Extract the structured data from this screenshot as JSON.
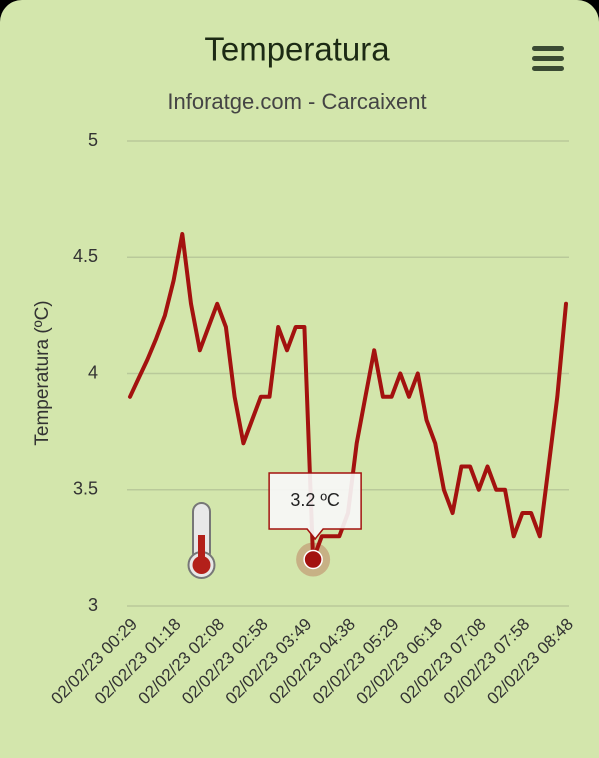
{
  "chart_data": {
    "type": "line",
    "title": "Temperatura",
    "subtitle": "Inforatge.com - Carcaixent",
    "y_label": "Temperatura (ºC)",
    "categories": [
      "02/02/23 00:29",
      null,
      null,
      null,
      null,
      "02/02/23 01:18",
      null,
      null,
      null,
      null,
      "02/02/23 02:08",
      null,
      null,
      null,
      null,
      "02/02/23 02:58",
      null,
      null,
      null,
      null,
      "02/02/23 03:49",
      null,
      null,
      null,
      null,
      "02/02/23 04:38",
      null,
      null,
      null,
      null,
      "02/02/23 05:29",
      null,
      null,
      null,
      null,
      "02/02/23 06:18",
      null,
      null,
      null,
      null,
      "02/02/23 07:08",
      null,
      null,
      null,
      null,
      "02/02/23 07:58",
      null,
      null,
      null,
      null,
      "02/02/23 08:48"
    ],
    "series": [
      {
        "name": "Temperatura",
        "color": "#a3120f",
        "values": [
          3.9,
          3.98,
          4.06,
          4.15,
          4.25,
          4.4,
          4.6,
          4.3,
          4.1,
          4.2,
          4.3,
          4.2,
          3.9,
          3.7,
          3.8,
          3.9,
          3.9,
          4.2,
          4.1,
          4.2,
          4.2,
          3.2,
          3.3,
          3.3,
          3.3,
          3.4,
          3.7,
          3.9,
          4.1,
          3.9,
          3.9,
          4.0,
          3.9,
          4.0,
          3.8,
          3.7,
          3.5,
          3.4,
          3.6,
          3.6,
          3.5,
          3.6,
          3.5,
          3.5,
          3.3,
          3.4,
          3.4,
          3.3,
          3.6,
          3.9,
          4.3
        ]
      }
    ],
    "tooltip_index": 21,
    "tooltip_label": "3.2 ºC",
    "ylim": [
      3,
      5
    ],
    "yticks": [
      3,
      3.5,
      4,
      4.5,
      5
    ],
    "grid": true
  }
}
